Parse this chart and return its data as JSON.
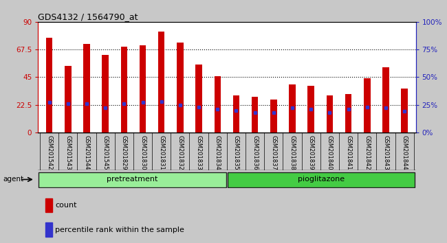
{
  "title": "GDS4132 / 1564790_at",
  "samples": [
    "GSM201542",
    "GSM201543",
    "GSM201544",
    "GSM201545",
    "GSM201829",
    "GSM201830",
    "GSM201831",
    "GSM201832",
    "GSM201833",
    "GSM201834",
    "GSM201835",
    "GSM201836",
    "GSM201837",
    "GSM201838",
    "GSM201839",
    "GSM201840",
    "GSM201841",
    "GSM201842",
    "GSM201843",
    "GSM201844"
  ],
  "counts": [
    77,
    54,
    72,
    63,
    70,
    71,
    82,
    73,
    55,
    46,
    30,
    29,
    27,
    39,
    38,
    30,
    31,
    44,
    53,
    36
  ],
  "percentile_ranks": [
    27,
    26,
    26,
    22,
    26,
    27,
    28,
    25,
    23,
    21,
    20,
    18,
    18,
    22,
    21,
    18,
    21,
    23,
    22,
    19
  ],
  "pretreatment_count": 10,
  "pioglitazone_count": 10,
  "ylim_left": [
    0,
    90
  ],
  "ylim_right": [
    0,
    100
  ],
  "yticks_left": [
    0,
    22.5,
    45,
    67.5,
    90
  ],
  "yticks_right": [
    0,
    25,
    50,
    75,
    100
  ],
  "ytick_labels_left": [
    "0",
    "22.5",
    "45",
    "67.5",
    "90"
  ],
  "ytick_labels_right": [
    "0%",
    "25%",
    "50%",
    "75%",
    "100%"
  ],
  "bar_color": "#CC0000",
  "dot_color": "#3333CC",
  "pretreatment_color": "#99EE99",
  "pioglitazone_color": "#44CC44",
  "agent_label": "agent",
  "pretreatment_label": "pretreatment",
  "pioglitazone_label": "pioglitazone",
  "legend_count_label": "count",
  "legend_pct_label": "percentile rank within the sample",
  "background_color": "#C8C8C8",
  "plot_bg_color": "#FFFFFF",
  "title_color": "#000000",
  "left_axis_color": "#CC0000",
  "right_axis_color": "#2222BB",
  "bar_width": 0.35,
  "xtick_bg_color": "#C0C0C0"
}
